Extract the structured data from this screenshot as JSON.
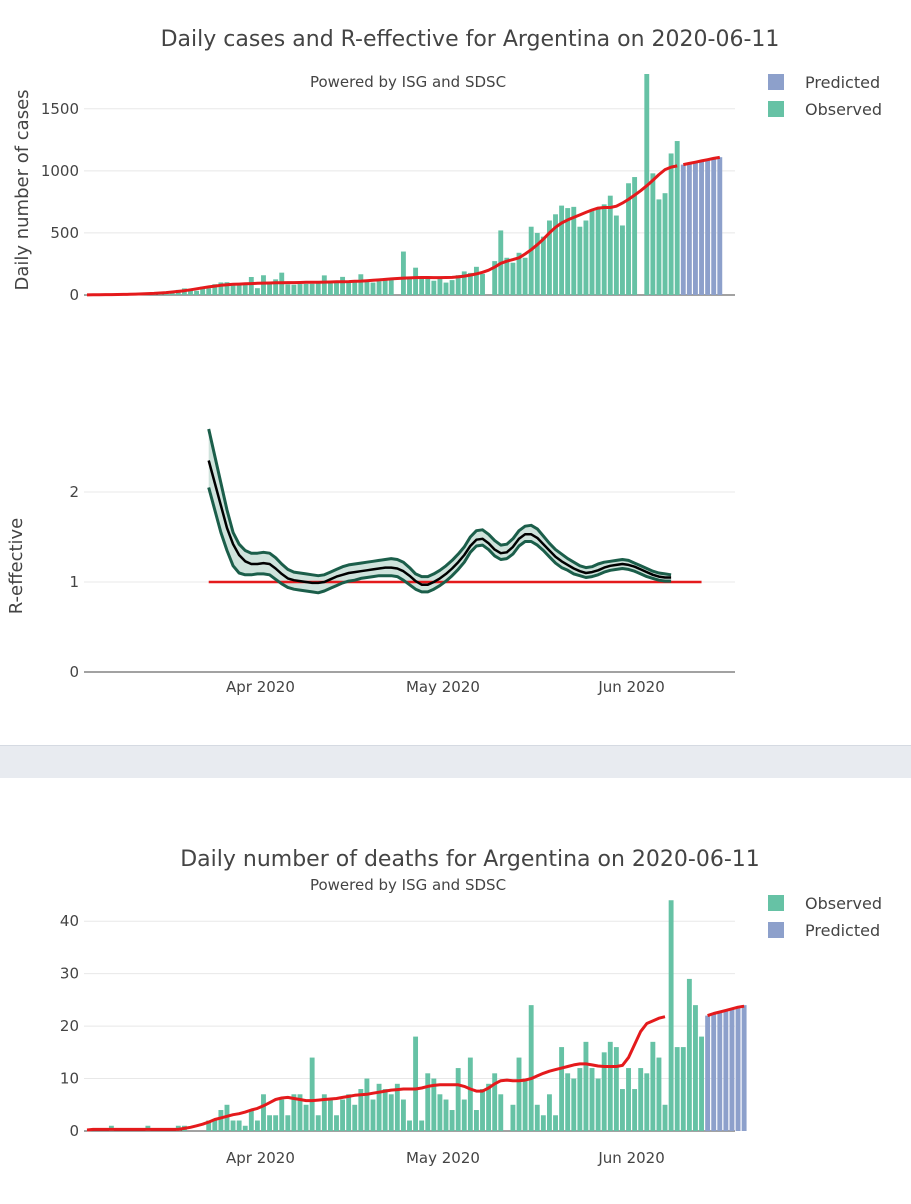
{
  "colors": {
    "observed": "#66c2a5",
    "predicted": "#8da0cb",
    "fit": "#e41a1c",
    "r_band_edge": "#1b5e4a",
    "r_band_fill": "#cfe3dc",
    "r_line": "#000000",
    "grid": "#e8e8e8",
    "text": "#444444"
  },
  "cases_panel": {
    "title": "Daily cases and R-effective for Argentina on 2020-06-11",
    "subtitle": "Powered by ISG and SDSC",
    "legend": [
      "Predicted",
      "Observed"
    ]
  },
  "deaths_panel": {
    "title": "Daily number of deaths for Argentina on 2020-06-11",
    "subtitle": "Powered by ISG and SDSC",
    "legend": [
      "Observed",
      "Predicted"
    ]
  },
  "chart_data": [
    {
      "type": "bar",
      "title": "Daily cases and R-effective for Argentina on 2020-06-11",
      "ylabel": "Daily number of cases",
      "xlabel": "",
      "x_start": "2020-03-03",
      "x_range": [
        "2020-03-03",
        "2020-06-18"
      ],
      "ylim": [
        0,
        1780
      ],
      "yticks": [
        0,
        500,
        1000,
        1500
      ],
      "xticks": [
        {
          "day": 29,
          "label": "Apr 2020"
        },
        {
          "day": 59,
          "label": "May 2020"
        },
        {
          "day": 90,
          "label": "Jun 2020"
        }
      ],
      "series": [
        {
          "name": "Observed",
          "start_index": 0,
          "values": [
            1,
            0,
            1,
            1,
            2,
            3,
            3,
            5,
            3,
            12,
            10,
            14,
            14,
            17,
            19,
            41,
            53,
            38,
            34,
            67,
            55,
            87,
            101,
            103,
            80,
            89,
            86,
            145,
            55,
            159,
            102,
            126,
            180,
            86,
            83,
            88,
            90,
            91,
            104,
            158,
            115,
            102,
            146,
            112,
            120,
            167,
            114,
            100,
            111,
            129,
            133,
            0,
            350,
            145,
            220,
            140,
            130,
            115,
            136,
            100,
            120,
            160,
            190,
            178,
            227,
            170,
            0,
            273,
            520,
            300,
            260,
            340,
            300,
            550,
            500,
            470,
            600,
            650,
            720,
            700,
            710,
            550,
            600,
            680,
            700,
            730,
            800,
            640,
            560,
            900,
            950,
            0,
            1780,
            980,
            770,
            820,
            1140,
            1240
          ]
        },
        {
          "name": "Predicted",
          "start_index": 98,
          "values": [
            1050,
            1060,
            1070,
            1080,
            1090,
            1100,
            1110
          ]
        },
        {
          "name": "Fit",
          "type": "line",
          "start_index": 0,
          "values": [
            1,
            2,
            2,
            3,
            3,
            4,
            5,
            6,
            7,
            9,
            11,
            13,
            16,
            19,
            24,
            29,
            35,
            42,
            50,
            58,
            65,
            72,
            78,
            82,
            86,
            88,
            90,
            92,
            94,
            96,
            97,
            98,
            99,
            100,
            100,
            101,
            102,
            102,
            103,
            104,
            105,
            106,
            107,
            108,
            110,
            112,
            115,
            118,
            122,
            126,
            130,
            133,
            136,
            138,
            140,
            141,
            141,
            140,
            140,
            141,
            142,
            146,
            152,
            160,
            170,
            183,
            200,
            225,
            255,
            272,
            285,
            300,
            330,
            365,
            405,
            450,
            500,
            545,
            580,
            605,
            625,
            645,
            665,
            685,
            700,
            705,
            705,
            715,
            740,
            770,
            805,
            840,
            880,
            925,
            970,
            1010,
            1030,
            1040
          ]
        },
        {
          "name": "Fit (predicted)",
          "type": "line",
          "start_index": 98,
          "values": [
            1050,
            1060,
            1070,
            1080,
            1090,
            1100,
            1108
          ]
        }
      ]
    },
    {
      "type": "line",
      "title": "",
      "ylabel": "R-effective",
      "xlabel": "",
      "x_start": "2020-03-03",
      "x_range": [
        "2020-03-03",
        "2020-06-18"
      ],
      "ylim": [
        0,
        2.7
      ],
      "yticks": [
        0,
        1,
        2
      ],
      "xticks": [
        {
          "day": 29,
          "label": "Apr 2020"
        },
        {
          "day": 59,
          "label": "May 2020"
        },
        {
          "day": 90,
          "label": "Jun 2020"
        }
      ],
      "series": [
        {
          "name": "R-effective",
          "start_index": 20,
          "values": [
            2.35,
            2.1,
            1.85,
            1.6,
            1.42,
            1.3,
            1.23,
            1.2,
            1.2,
            1.21,
            1.2,
            1.15,
            1.09,
            1.04,
            1.02,
            1.01,
            1,
            0.99,
            0.99,
            1,
            1.03,
            1.06,
            1.08,
            1.1,
            1.11,
            1.12,
            1.13,
            1.14,
            1.15,
            1.16,
            1.16,
            1.15,
            1.12,
            1.07,
            1.01,
            0.97,
            0.97,
            1,
            1.04,
            1.09,
            1.15,
            1.22,
            1.3,
            1.4,
            1.47,
            1.48,
            1.43,
            1.36,
            1.32,
            1.33,
            1.39,
            1.48,
            1.53,
            1.53,
            1.49,
            1.42,
            1.35,
            1.28,
            1.23,
            1.19,
            1.15,
            1.12,
            1.1,
            1.11,
            1.13,
            1.16,
            1.18,
            1.19,
            1.2,
            1.19,
            1.17,
            1.14,
            1.11,
            1.08,
            1.06,
            1.05,
            1.05
          ]
        },
        {
          "name": "Upper bound",
          "start_index": 20,
          "values": [
            2.7,
            2.4,
            2.1,
            1.8,
            1.55,
            1.42,
            1.35,
            1.32,
            1.32,
            1.33,
            1.32,
            1.27,
            1.2,
            1.14,
            1.11,
            1.1,
            1.09,
            1.08,
            1.07,
            1.08,
            1.11,
            1.14,
            1.17,
            1.19,
            1.2,
            1.21,
            1.22,
            1.23,
            1.24,
            1.25,
            1.26,
            1.25,
            1.22,
            1.16,
            1.09,
            1.06,
            1.06,
            1.09,
            1.13,
            1.18,
            1.24,
            1.31,
            1.39,
            1.5,
            1.57,
            1.58,
            1.53,
            1.46,
            1.41,
            1.42,
            1.48,
            1.57,
            1.62,
            1.63,
            1.59,
            1.51,
            1.43,
            1.36,
            1.31,
            1.26,
            1.22,
            1.18,
            1.16,
            1.17,
            1.2,
            1.22,
            1.23,
            1.24,
            1.25,
            1.24,
            1.21,
            1.18,
            1.15,
            1.12,
            1.1,
            1.09,
            1.08
          ]
        },
        {
          "name": "Lower bound",
          "start_index": 20,
          "values": [
            2.05,
            1.8,
            1.55,
            1.35,
            1.18,
            1.1,
            1.08,
            1.08,
            1.09,
            1.09,
            1.08,
            1.03,
            0.98,
            0.94,
            0.92,
            0.91,
            0.9,
            0.89,
            0.88,
            0.9,
            0.93,
            0.96,
            0.99,
            1.01,
            1.02,
            1.04,
            1.05,
            1.06,
            1.07,
            1.07,
            1.07,
            1.06,
            1.02,
            0.97,
            0.92,
            0.89,
            0.89,
            0.92,
            0.96,
            1.01,
            1.07,
            1.14,
            1.22,
            1.33,
            1.4,
            1.41,
            1.36,
            1.29,
            1.25,
            1.26,
            1.31,
            1.4,
            1.45,
            1.45,
            1.41,
            1.35,
            1.28,
            1.21,
            1.16,
            1.13,
            1.09,
            1.07,
            1.05,
            1.06,
            1.08,
            1.11,
            1.13,
            1.14,
            1.15,
            1.14,
            1.12,
            1.09,
            1.06,
            1.04,
            1.02,
            1.01,
            1.01
          ]
        },
        {
          "name": "Threshold",
          "start_index": 20,
          "values": [
            1,
            1
          ]
        },
        {
          "name": "Threshold end",
          "start_index": 96,
          "values": [
            1
          ]
        }
      ]
    },
    {
      "type": "bar",
      "title": "Daily number of deaths for Argentina on 2020-06-11",
      "ylabel": "",
      "xlabel": "",
      "x_start": "2020-03-03",
      "x_range": [
        "2020-03-03",
        "2020-06-18"
      ],
      "ylim": [
        0,
        45
      ],
      "yticks": [
        0,
        10,
        20,
        30,
        40
      ],
      "xticks": [
        {
          "day": 29,
          "label": "Apr 2020"
        },
        {
          "day": 59,
          "label": "May 2020"
        },
        {
          "day": 90,
          "label": "Jun 2020"
        }
      ],
      "series": [
        {
          "name": "Observed",
          "start_index": 0,
          "values": [
            0,
            0,
            0,
            0,
            1,
            0,
            0,
            0,
            0,
            0,
            1,
            0,
            0,
            0,
            0,
            1,
            1,
            0,
            0,
            0,
            2,
            2,
            4,
            5,
            2,
            2,
            1,
            4,
            2,
            7,
            3,
            3,
            6,
            3,
            7,
            7,
            5,
            14,
            3,
            7,
            6,
            3,
            6,
            7,
            5,
            8,
            10,
            6,
            9,
            8,
            7,
            9,
            6,
            2,
            18,
            2,
            11,
            10,
            7,
            6,
            4,
            12,
            6,
            14,
            4,
            8,
            9,
            11,
            7,
            0,
            5,
            14,
            10,
            24,
            5,
            3,
            7,
            3,
            16,
            11,
            10,
            12,
            17,
            12,
            10,
            15,
            17,
            16,
            8,
            12,
            8,
            12,
            11,
            17,
            14,
            5,
            44,
            16,
            16,
            29,
            24,
            18
          ]
        },
        {
          "name": "Predicted",
          "start_index": 102,
          "values": [
            22,
            22.5,
            22.7,
            23,
            23.2,
            23.5,
            24
          ]
        },
        {
          "name": "Fit",
          "type": "line",
          "start_index": 0,
          "values": [
            0.2,
            0.3,
            0.3,
            0.3,
            0.3,
            0.3,
            0.3,
            0.3,
            0.3,
            0.3,
            0.3,
            0.3,
            0.3,
            0.3,
            0.3,
            0.3,
            0.5,
            0.7,
            1,
            1.3,
            1.7,
            2.2,
            2.5,
            2.8,
            3.1,
            3.3,
            3.6,
            4,
            4.3,
            4.8,
            5.4,
            6,
            6.3,
            6.4,
            6.2,
            6,
            5.8,
            5.8,
            5.9,
            6,
            6.1,
            6.2,
            6.4,
            6.6,
            6.8,
            6.9,
            7,
            7.2,
            7.4,
            7.6,
            7.8,
            7.9,
            8,
            8,
            8,
            8.2,
            8.5,
            8.7,
            8.8,
            8.8,
            8.8,
            8.8,
            8.5,
            8,
            7.6,
            7.6,
            8.2,
            9,
            9.6,
            9.7,
            9.6,
            9.6,
            9.7,
            10,
            10.5,
            11,
            11.4,
            11.7,
            12,
            12.3,
            12.6,
            12.8,
            12.8,
            12.6,
            12.4,
            12.3,
            12.3,
            12.3,
            12.5,
            14,
            16.5,
            19,
            20.5,
            21,
            21.5,
            21.8
          ]
        },
        {
          "name": "Fit (predicted)",
          "type": "line",
          "start_index": 102,
          "values": [
            22,
            22.4,
            22.7,
            23,
            23.3,
            23.6,
            23.8
          ]
        }
      ]
    }
  ],
  "axis_labels": {
    "cases_y_ticks": [
      "0",
      "500",
      "1000",
      "1500"
    ],
    "r_y_ticks": [
      "0",
      "1",
      "2"
    ],
    "deaths_y_ticks": [
      "0",
      "10",
      "20",
      "30",
      "40"
    ],
    "x_ticks": [
      "Apr 2020",
      "May 2020",
      "Jun 2020"
    ]
  }
}
